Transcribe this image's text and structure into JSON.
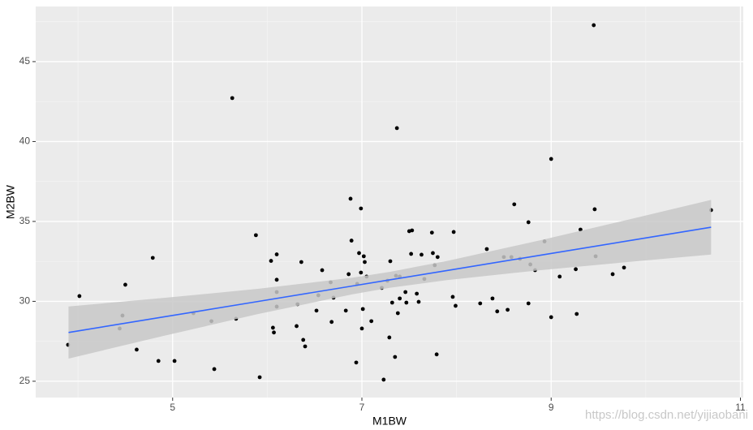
{
  "chart_data": {
    "type": "scatter",
    "x_label": "M1BW",
    "y_label": "M2BW",
    "watermark": "https://blog.csdn.net/yijiaobani",
    "point_color": "#000000",
    "xlim": [
      3.553,
      11.03
    ],
    "ylim": [
      23.98,
      48.45
    ],
    "xticks": [
      5,
      7,
      9,
      11
    ],
    "yticks": [
      25,
      30,
      35,
      40,
      45
    ],
    "x_minor_ticks": [
      4,
      6,
      8,
      10
    ],
    "y_minor_ticks": [
      27.5,
      32.5,
      37.5,
      42.5,
      47.5
    ],
    "grid": true,
    "x": [
      3.895,
      4.015,
      4.44,
      4.47,
      4.5,
      4.62,
      4.79,
      4.85,
      5.02,
      5.22,
      5.41,
      5.44,
      5.63,
      5.67,
      5.88,
      5.92,
      6.04,
      6.06,
      6.07,
      6.1,
      6.1,
      6.1,
      6.1,
      6.31,
      6.32,
      6.36,
      6.38,
      6.4,
      6.52,
      6.54,
      6.58,
      6.67,
      6.68,
      6.7,
      6.83,
      6.86,
      6.88,
      6.89,
      6.94,
      6.95,
      6.97,
      6.99,
      6.99,
      7.0,
      7.01,
      7.02,
      7.03,
      7.05,
      7.1,
      7.21,
      7.23,
      7.27,
      7.3,
      7.29,
      7.32,
      7.35,
      7.36,
      7.37,
      7.38,
      7.4,
      7.4,
      7.46,
      7.47,
      7.5,
      7.52,
      7.53,
      7.58,
      7.6,
      7.63,
      7.66,
      7.74,
      7.75,
      7.77,
      7.79,
      7.8,
      7.96,
      7.97,
      7.99,
      8.25,
      8.32,
      8.38,
      8.43,
      8.5,
      8.54,
      8.58,
      8.61,
      8.67,
      8.76,
      8.76,
      8.78,
      8.83,
      8.93,
      9.0,
      9.0,
      9.09,
      9.26,
      9.27,
      9.31,
      9.45,
      9.46,
      9.47,
      9.65,
      9.77,
      10.69
    ],
    "values": [
      27.28,
      30.33,
      28.3,
      29.11,
      31.04,
      26.98,
      32.72,
      26.27,
      26.27,
      29.26,
      28.76,
      25.76,
      42.72,
      28.91,
      34.14,
      25.25,
      32.53,
      28.35,
      28.05,
      32.94,
      30.58,
      31.35,
      29.67,
      28.45,
      29.82,
      32.46,
      27.59,
      27.18,
      29.42,
      30.38,
      31.95,
      31.19,
      28.71,
      30.23,
      29.42,
      31.7,
      36.42,
      33.8,
      26.17,
      31.09,
      33.02,
      35.81,
      31.8,
      28.3,
      29.52,
      32.82,
      32.46,
      31.55,
      28.76,
      30.84,
      25.1,
      31.29,
      32.51,
      27.74,
      29.92,
      26.52,
      31.6,
      40.84,
      29.26,
      31.55,
      30.18,
      30.58,
      29.92,
      34.39,
      32.97,
      34.44,
      30.48,
      29.97,
      32.92,
      31.4,
      34.3,
      33.02,
      32.26,
      26.68,
      32.77,
      30.28,
      34.34,
      29.72,
      29.87,
      33.27,
      30.18,
      29.37,
      32.77,
      29.47,
      32.77,
      36.07,
      32.66,
      34.95,
      29.87,
      32.31,
      31.95,
      33.75,
      38.91,
      29.01,
      31.55,
      32.01,
      29.21,
      34.49,
      47.28,
      35.76,
      32.82,
      31.7,
      32.11,
      35.71
    ],
    "smooth": {
      "line_color": "#3366ff",
      "band_color": "#c8c8c8",
      "x": [
        3.9,
        4.9,
        5.9,
        6.9,
        7.3,
        7.9,
        8.9,
        9.9,
        10.69
      ],
      "fit": [
        28.05,
        29.02,
        29.99,
        30.96,
        31.35,
        31.93,
        32.9,
        33.87,
        34.64
      ],
      "lower": [
        26.42,
        27.83,
        29.2,
        30.44,
        30.85,
        31.33,
        31.96,
        32.51,
        32.93
      ],
      "upper": [
        29.68,
        30.21,
        30.78,
        31.48,
        31.85,
        32.53,
        33.84,
        35.23,
        36.35
      ]
    }
  }
}
